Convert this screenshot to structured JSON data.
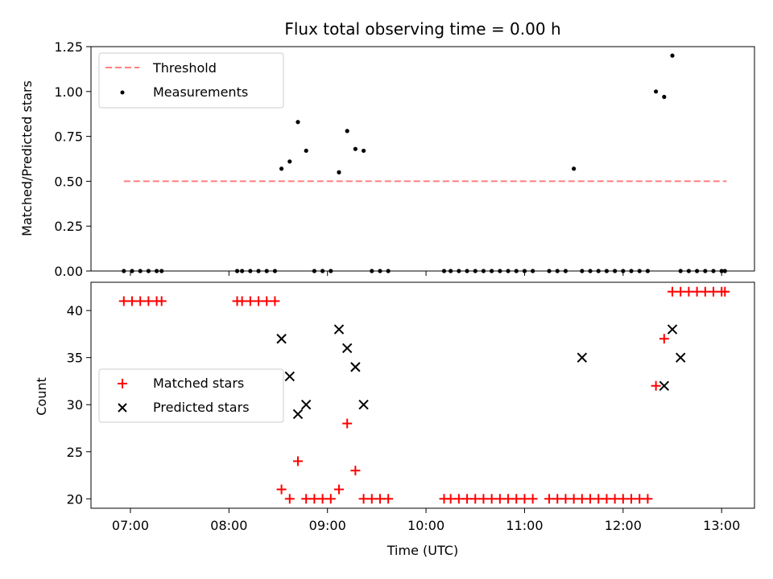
{
  "chart_data": [
    {
      "type": "scatter",
      "title": "Flux total observing time = 0.00 h",
      "ylabel": "Matched/Predicted stars",
      "xlabel": "",
      "ylim": [
        0,
        1.25
      ],
      "yticks": [
        0.0,
        0.25,
        0.5,
        0.75,
        1.0,
        1.25
      ],
      "ytick_labels": [
        "0.00",
        "0.25",
        "0.50",
        "0.75",
        "1.00",
        "1.25"
      ],
      "xtick_labels": [],
      "legend": {
        "placement": "upper-left",
        "entries": [
          "Threshold",
          "Measurements"
        ]
      },
      "series": [
        {
          "name": "Threshold",
          "style": "dashed-line",
          "color": "#ff7f7f",
          "x": [
            "06:56",
            "13:03"
          ],
          "y": [
            0.5,
            0.5
          ]
        },
        {
          "name": "Measurements",
          "style": "dot",
          "color": "#000000",
          "x": [
            "06:56",
            "07:01",
            "07:06",
            "07:11",
            "07:16",
            "07:19",
            "08:05",
            "08:08",
            "08:13",
            "08:18",
            "08:23",
            "08:28",
            "08:32",
            "08:37",
            "08:42",
            "08:47",
            "08:52",
            "08:57",
            "09:02",
            "09:07",
            "09:12",
            "09:17",
            "09:22",
            "09:27",
            "09:32",
            "09:37",
            "10:11",
            "10:15",
            "10:20",
            "10:25",
            "10:30",
            "10:35",
            "10:40",
            "10:45",
            "10:50",
            "10:55",
            "11:00",
            "11:05",
            "11:15",
            "11:20",
            "11:25",
            "11:30",
            "11:35",
            "11:40",
            "11:45",
            "11:50",
            "11:55",
            "12:00",
            "12:05",
            "12:10",
            "12:15",
            "12:20",
            "12:25",
            "12:30",
            "12:35",
            "12:40",
            "12:45",
            "12:50",
            "12:55",
            "13:00",
            "13:02"
          ],
          "y": [
            0,
            0,
            0,
            0,
            0,
            0,
            0,
            0,
            0,
            0,
            0,
            0,
            0.57,
            0.61,
            0.83,
            0.67,
            0,
            0,
            0,
            0.55,
            0.78,
            0.68,
            0.67,
            0,
            0,
            0,
            0,
            0,
            0,
            0,
            0,
            0,
            0,
            0,
            0,
            0,
            0,
            0,
            0,
            0,
            0,
            0.57,
            0,
            0,
            0,
            0,
            0,
            0,
            0,
            0,
            0,
            1.0,
            0.97,
            1.2,
            0,
            0,
            0,
            0,
            0,
            0,
            0
          ]
        }
      ]
    },
    {
      "type": "scatter",
      "title": "",
      "ylabel": "Count",
      "xlabel": "Time (UTC)",
      "ylim": [
        19,
        43
      ],
      "yticks": [
        20,
        25,
        30,
        35,
        40
      ],
      "ytick_labels": [
        "20",
        "25",
        "30",
        "35",
        "40"
      ],
      "xlim": [
        "06:36",
        "13:20"
      ],
      "xtick_labels": [
        "07:00",
        "08:00",
        "09:00",
        "10:00",
        "11:00",
        "12:00",
        "13:00"
      ],
      "legend": {
        "placement": "center-left",
        "entries": [
          "Matched stars",
          "Predicted stars"
        ]
      },
      "series": [
        {
          "name": "Matched stars",
          "style": "plus",
          "color": "#ff0000",
          "x": [
            "06:56",
            "07:01",
            "07:06",
            "07:11",
            "07:16",
            "07:19",
            "08:05",
            "08:08",
            "08:13",
            "08:18",
            "08:23",
            "08:28",
            "08:32",
            "08:37",
            "08:42",
            "08:47",
            "08:52",
            "08:57",
            "09:02",
            "09:07",
            "09:12",
            "09:17",
            "09:22",
            "09:27",
            "09:32",
            "09:37",
            "10:11",
            "10:15",
            "10:20",
            "10:25",
            "10:30",
            "10:35",
            "10:40",
            "10:45",
            "10:50",
            "10:55",
            "11:00",
            "11:05",
            "11:15",
            "11:20",
            "11:25",
            "11:30",
            "11:35",
            "11:40",
            "11:45",
            "11:50",
            "11:55",
            "12:00",
            "12:05",
            "12:10",
            "12:15",
            "12:20",
            "12:25",
            "12:30",
            "12:35",
            "12:40",
            "12:45",
            "12:50",
            "12:55",
            "13:00",
            "13:02"
          ],
          "y": [
            41,
            41,
            41,
            41,
            41,
            41,
            41,
            41,
            41,
            41,
            41,
            41,
            21,
            20,
            24,
            20,
            20,
            20,
            20,
            21,
            28,
            23,
            20,
            20,
            20,
            20,
            20,
            20,
            20,
            20,
            20,
            20,
            20,
            20,
            20,
            20,
            20,
            20,
            20,
            20,
            20,
            20,
            20,
            20,
            20,
            20,
            20,
            20,
            20,
            20,
            20,
            32,
            37,
            42,
            42,
            42,
            42,
            42,
            42,
            42,
            42
          ]
        },
        {
          "name": "Predicted stars",
          "style": "x",
          "color": "#000000",
          "x": [
            "08:32",
            "08:37",
            "08:42",
            "08:47",
            "09:07",
            "09:12",
            "09:17",
            "09:22",
            "11:35",
            "12:25",
            "12:30",
            "12:35"
          ],
          "y": [
            37,
            33,
            29,
            30,
            38,
            36,
            34,
            30,
            35,
            32,
            38,
            35
          ]
        }
      ]
    }
  ]
}
